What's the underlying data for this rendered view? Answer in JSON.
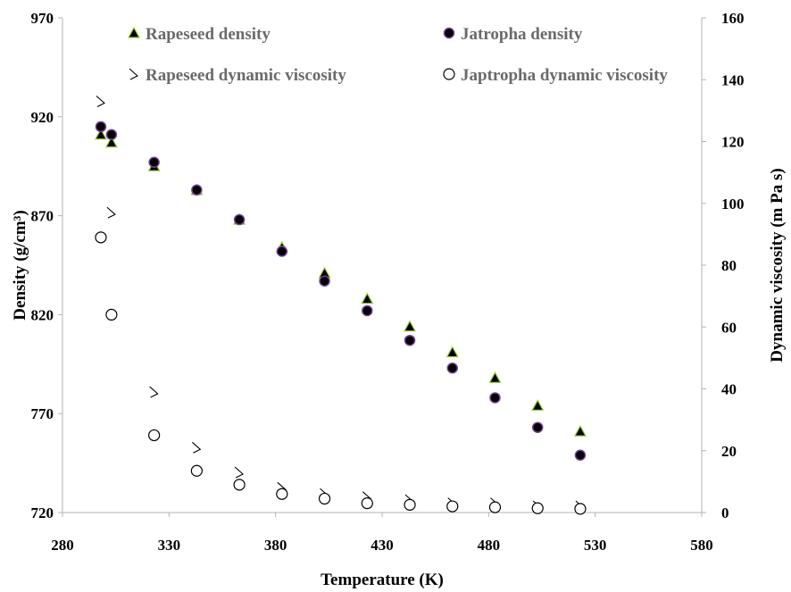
{
  "chart_data": {
    "type": "scatter",
    "xlabel": "Temperature (K)",
    "ylabel_left": "Density (g/cm³)",
    "ylabel_right": "Dynamic viscosity (m Pa  s)",
    "xlim": [
      280,
      580
    ],
    "xticks": [
      "280",
      "330",
      "380",
      "430",
      "480",
      "530",
      "580"
    ],
    "ylim_left": [
      720,
      970
    ],
    "yticks_left": [
      "720",
      "770",
      "820",
      "870",
      "920",
      "970"
    ],
    "ylim_right": [
      0,
      160
    ],
    "yticks_right": [
      "0",
      "20",
      "40",
      "60",
      "80",
      "100",
      "120",
      "140",
      "160"
    ],
    "grid": false,
    "legend_position": "top",
    "series": [
      {
        "name": "Rapeseed density",
        "axis": "left",
        "marker": "triangle",
        "color": "#000000",
        "edge": "#9acd32",
        "x": [
          298,
          303,
          323,
          343,
          363,
          383,
          403,
          423,
          443,
          463,
          483,
          503,
          523
        ],
        "y": [
          911,
          907,
          895,
          883,
          868,
          854,
          841,
          828,
          814,
          801,
          788,
          774,
          761
        ]
      },
      {
        "name": "Jatropha density",
        "axis": "left",
        "marker": "circle",
        "color": "#000000",
        "edge": "#7b3f9e",
        "x": [
          298,
          303,
          323,
          343,
          363,
          383,
          403,
          423,
          443,
          463,
          483,
          503,
          523
        ],
        "y": [
          915,
          911,
          897,
          883,
          868,
          852,
          837,
          822,
          807,
          793,
          778,
          763,
          749
        ]
      },
      {
        "name": "Rapeseed dynamic viscosity",
        "axis": "right",
        "marker": "tick",
        "color": "#000000",
        "x": [
          298,
          303,
          323,
          343,
          363,
          383,
          403,
          423,
          443,
          463,
          483,
          503,
          523
        ],
        "y": [
          133,
          97,
          39,
          21,
          13,
          8,
          6,
          5,
          4,
          3,
          3,
          2,
          2
        ]
      },
      {
        "name": "Japtropha dynamic viscosity",
        "axis": "right",
        "marker": "open-circle",
        "color": "#000000",
        "x": [
          298,
          303,
          323,
          343,
          363,
          383,
          403,
          423,
          443,
          463,
          483,
          503,
          523
        ],
        "y": [
          89,
          64,
          25,
          13.5,
          9,
          6,
          4.5,
          3,
          2.5,
          2,
          1.7,
          1.4,
          1.2
        ]
      }
    ]
  }
}
